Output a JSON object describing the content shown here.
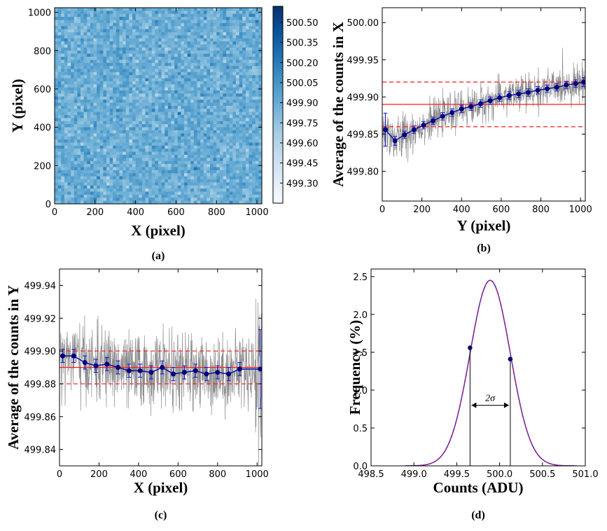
{
  "chart_data": [
    {
      "id": "a",
      "type": "heatmap",
      "panel_label": "(a)",
      "xlabel": "X (pixel)",
      "ylabel": "Y (pixel)",
      "xlim": [
        0,
        1024
      ],
      "ylim": [
        0,
        1024
      ],
      "xticks": [
        0,
        200,
        400,
        600,
        800,
        1000
      ],
      "yticks": [
        0,
        200,
        400,
        600,
        800,
        1000
      ],
      "value_mean": 499.89,
      "colorbar": {
        "min": 499.15,
        "max": 500.62,
        "ticks": [
          499.3,
          499.45,
          499.6,
          499.75,
          499.9,
          500.05,
          500.2,
          500.35,
          500.5
        ],
        "tick_labels": [
          "499.30",
          "499.45",
          "499.60",
          "499.75",
          "499.90",
          "500.05",
          "500.20",
          "500.35",
          "500.50"
        ],
        "colors": [
          "#f7fbff",
          "#deebf7",
          "#c6dbef",
          "#9ecae1",
          "#6baed6",
          "#4292c6",
          "#2171b5",
          "#08519c",
          "#08306b"
        ]
      }
    },
    {
      "id": "b",
      "type": "line",
      "panel_label": "(b)",
      "xlabel": "Y (pixel)",
      "ylabel": "Average of the counts in X",
      "xlim": [
        0,
        1024
      ],
      "ylim": [
        499.76,
        500.02
      ],
      "xticks": [
        0,
        200,
        400,
        600,
        800,
        1000
      ],
      "yticks": [
        499.8,
        499.85,
        499.9,
        499.95,
        500.0
      ],
      "ytick_labels": [
        "499.80",
        "499.85",
        "499.90",
        "499.95",
        "500.00"
      ],
      "mean_line": 499.89,
      "band": [
        499.86,
        499.92
      ],
      "binned": {
        "x": [
          16,
          64,
          112,
          160,
          208,
          256,
          304,
          352,
          400,
          448,
          496,
          544,
          592,
          640,
          688,
          736,
          784,
          832,
          880,
          928,
          976,
          1016
        ],
        "y": [
          499.856,
          499.841,
          499.849,
          499.856,
          499.862,
          499.868,
          499.874,
          499.879,
          499.884,
          499.887,
          499.891,
          499.895,
          499.899,
          499.902,
          499.904,
          499.906,
          499.909,
          499.911,
          499.913,
          499.916,
          499.918,
          499.92
        ],
        "err": [
          0.022,
          0.006,
          0.005,
          0.005,
          0.005,
          0.005,
          0.005,
          0.005,
          0.005,
          0.005,
          0.005,
          0.005,
          0.005,
          0.005,
          0.005,
          0.005,
          0.005,
          0.005,
          0.005,
          0.005,
          0.005,
          0.006
        ]
      },
      "raw_scatter": 0.012
    },
    {
      "id": "c",
      "type": "line",
      "panel_label": "(c)",
      "xlabel": "X (pixel)",
      "ylabel": "Average of the counts in Y",
      "xlim": [
        0,
        1024
      ],
      "ylim": [
        499.83,
        499.95
      ],
      "xticks": [
        0,
        200,
        400,
        600,
        800,
        1000
      ],
      "yticks": [
        499.84,
        499.86,
        499.88,
        499.9,
        499.92,
        499.94
      ],
      "ytick_labels": [
        "499.84",
        "499.86",
        "499.88",
        "499.90",
        "499.92",
        "499.94"
      ],
      "mean_line": 499.89,
      "band": [
        499.88,
        499.9
      ],
      "binned": {
        "x": [
          16,
          72,
          128,
          184,
          240,
          296,
          352,
          408,
          464,
          520,
          576,
          632,
          688,
          744,
          800,
          856,
          912,
          1016
        ],
        "y": [
          499.897,
          499.897,
          499.893,
          499.891,
          499.892,
          499.89,
          499.888,
          499.888,
          499.887,
          499.89,
          499.886,
          499.887,
          499.888,
          499.886,
          499.887,
          499.886,
          499.889,
          499.889
        ],
        "err": [
          0.004,
          0.004,
          0.004,
          0.004,
          0.004,
          0.004,
          0.004,
          0.004,
          0.004,
          0.004,
          0.004,
          0.004,
          0.004,
          0.004,
          0.004,
          0.004,
          0.004,
          0.024
        ]
      },
      "raw_scatter": 0.011
    },
    {
      "id": "d",
      "type": "line",
      "panel_label": "(d)",
      "xlabel": "Counts (ADU)",
      "ylabel": "Frequency (%)",
      "xlim": [
        498.5,
        501.0
      ],
      "ylim": [
        0,
        2.6
      ],
      "xticks": [
        498.5,
        499.0,
        499.5,
        500.0,
        500.5,
        501.0
      ],
      "xtick_labels": [
        "498.5",
        "499.0",
        "499.5",
        "500.0",
        "500.5",
        "501.0"
      ],
      "yticks": [
        0.0,
        0.5,
        1.0,
        1.5,
        2.0,
        2.5
      ],
      "ytick_labels": [
        "0.0",
        "0.5",
        "1.0",
        "1.5",
        "2.0",
        "2.5"
      ],
      "gaussian": {
        "mean": 499.89,
        "sigma": 0.235,
        "peak": 2.45
      },
      "sigma_points": {
        "x": [
          499.655,
          500.125
        ],
        "y": [
          1.56,
          1.41
        ]
      },
      "annotation": "2σ",
      "annotation_y": 0.8
    }
  ]
}
